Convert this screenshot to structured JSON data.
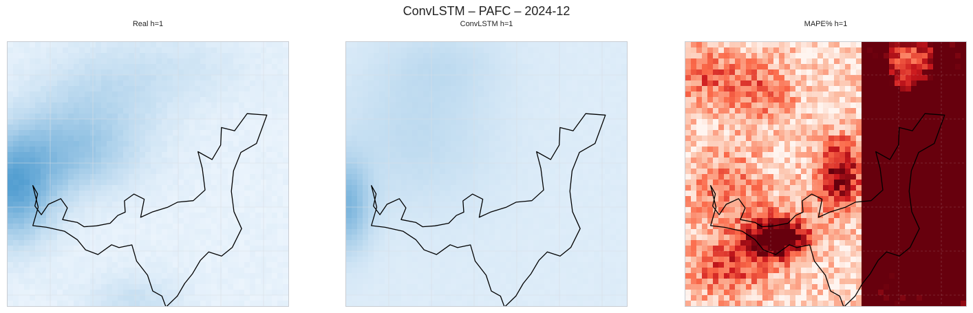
{
  "figure": {
    "suptitle": "ConvLSTM – PAFC – 2024-12"
  },
  "colors": {
    "blues_low": "#f4f9ff",
    "blues_high": "#4f9cd0",
    "reds_low": "#fff3ee",
    "reds_high": "#67000d",
    "outline": "#000000",
    "frame": "#c8ccd2",
    "grid": "#d9dde3"
  },
  "chart_data": [
    {
      "type": "heatmap",
      "title": "Real h=1",
      "colormap": "Blues",
      "grid": true,
      "boundary_outline": true
    },
    {
      "type": "heatmap",
      "title": "ConvLSTM h=1",
      "colormap": "Blues",
      "grid": true,
      "boundary_outline": true
    },
    {
      "type": "heatmap",
      "title": "MAPE% h=1",
      "colormap": "Reds",
      "grid": true,
      "boundary_outline": true
    }
  ]
}
